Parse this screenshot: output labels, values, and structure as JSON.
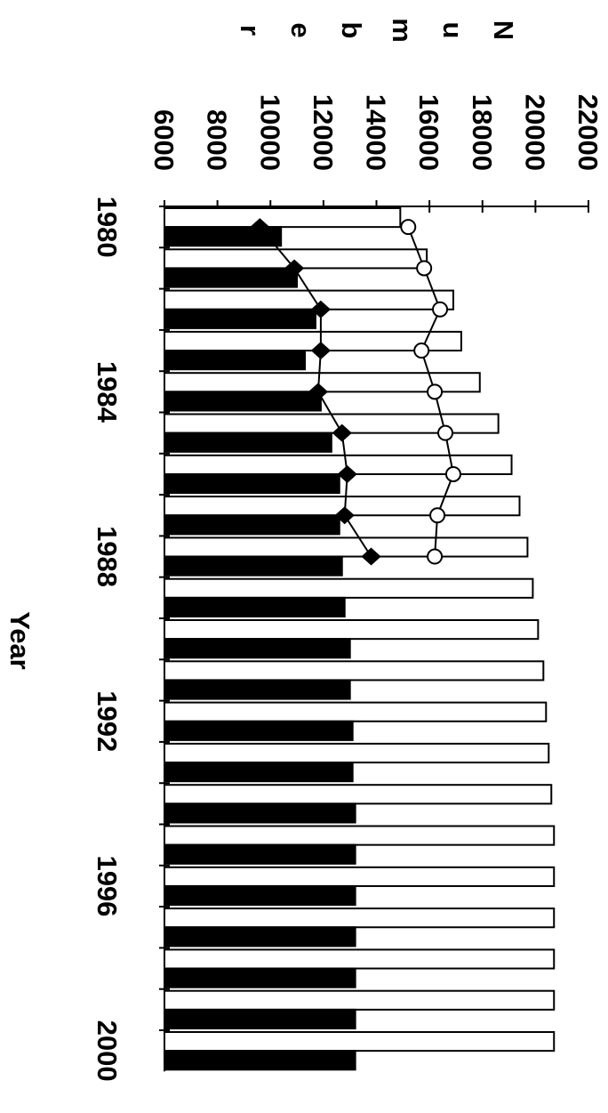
{
  "chart_data": {
    "type": "bar",
    "xlabel": "Year",
    "ylabel": "Number",
    "categories": [
      1980,
      null,
      null,
      null,
      1984,
      null,
      null,
      null,
      1988,
      null,
      null,
      null,
      1992,
      null,
      null,
      null,
      1996,
      null,
      null,
      null,
      2000
    ],
    "series": [
      {
        "color": "#ffffff",
        "values": [
          14900,
          15900,
          16900,
          17200,
          17900,
          18600,
          19100,
          19400,
          19700,
          19900,
          20100,
          20300,
          20400,
          20500,
          20600,
          20700,
          20700,
          20700,
          20700,
          20700,
          20700
        ]
      },
      {
        "color": "#000000",
        "values": [
          10400,
          11000,
          11700,
          11300,
          11900,
          12300,
          12600,
          12600,
          12700,
          12800,
          13000,
          13000,
          13100,
          13100,
          13200,
          13200,
          13200,
          13200,
          13200,
          13200,
          13200
        ]
      }
    ],
    "lines": [
      {
        "marker": "diamond",
        "color": "#000000",
        "values": [
          9600,
          10900,
          11900,
          11900,
          11800,
          12700,
          12900,
          12800,
          13800,
          null,
          null,
          null,
          null,
          null,
          null,
          null,
          null,
          null,
          null,
          null,
          null
        ]
      },
      {
        "marker": "circle",
        "color": "#ffffff",
        "values": [
          15200,
          15800,
          16400,
          15700,
          16200,
          16600,
          16900,
          16300,
          16200,
          null,
          null,
          null,
          null,
          null,
          null,
          null,
          null,
          null,
          null,
          null,
          null
        ]
      }
    ],
    "ylim": [
      6000,
      22000
    ],
    "yticks": [
      6000,
      8000,
      10000,
      12000,
      14000,
      16000,
      18000,
      20000,
      22000
    ]
  }
}
